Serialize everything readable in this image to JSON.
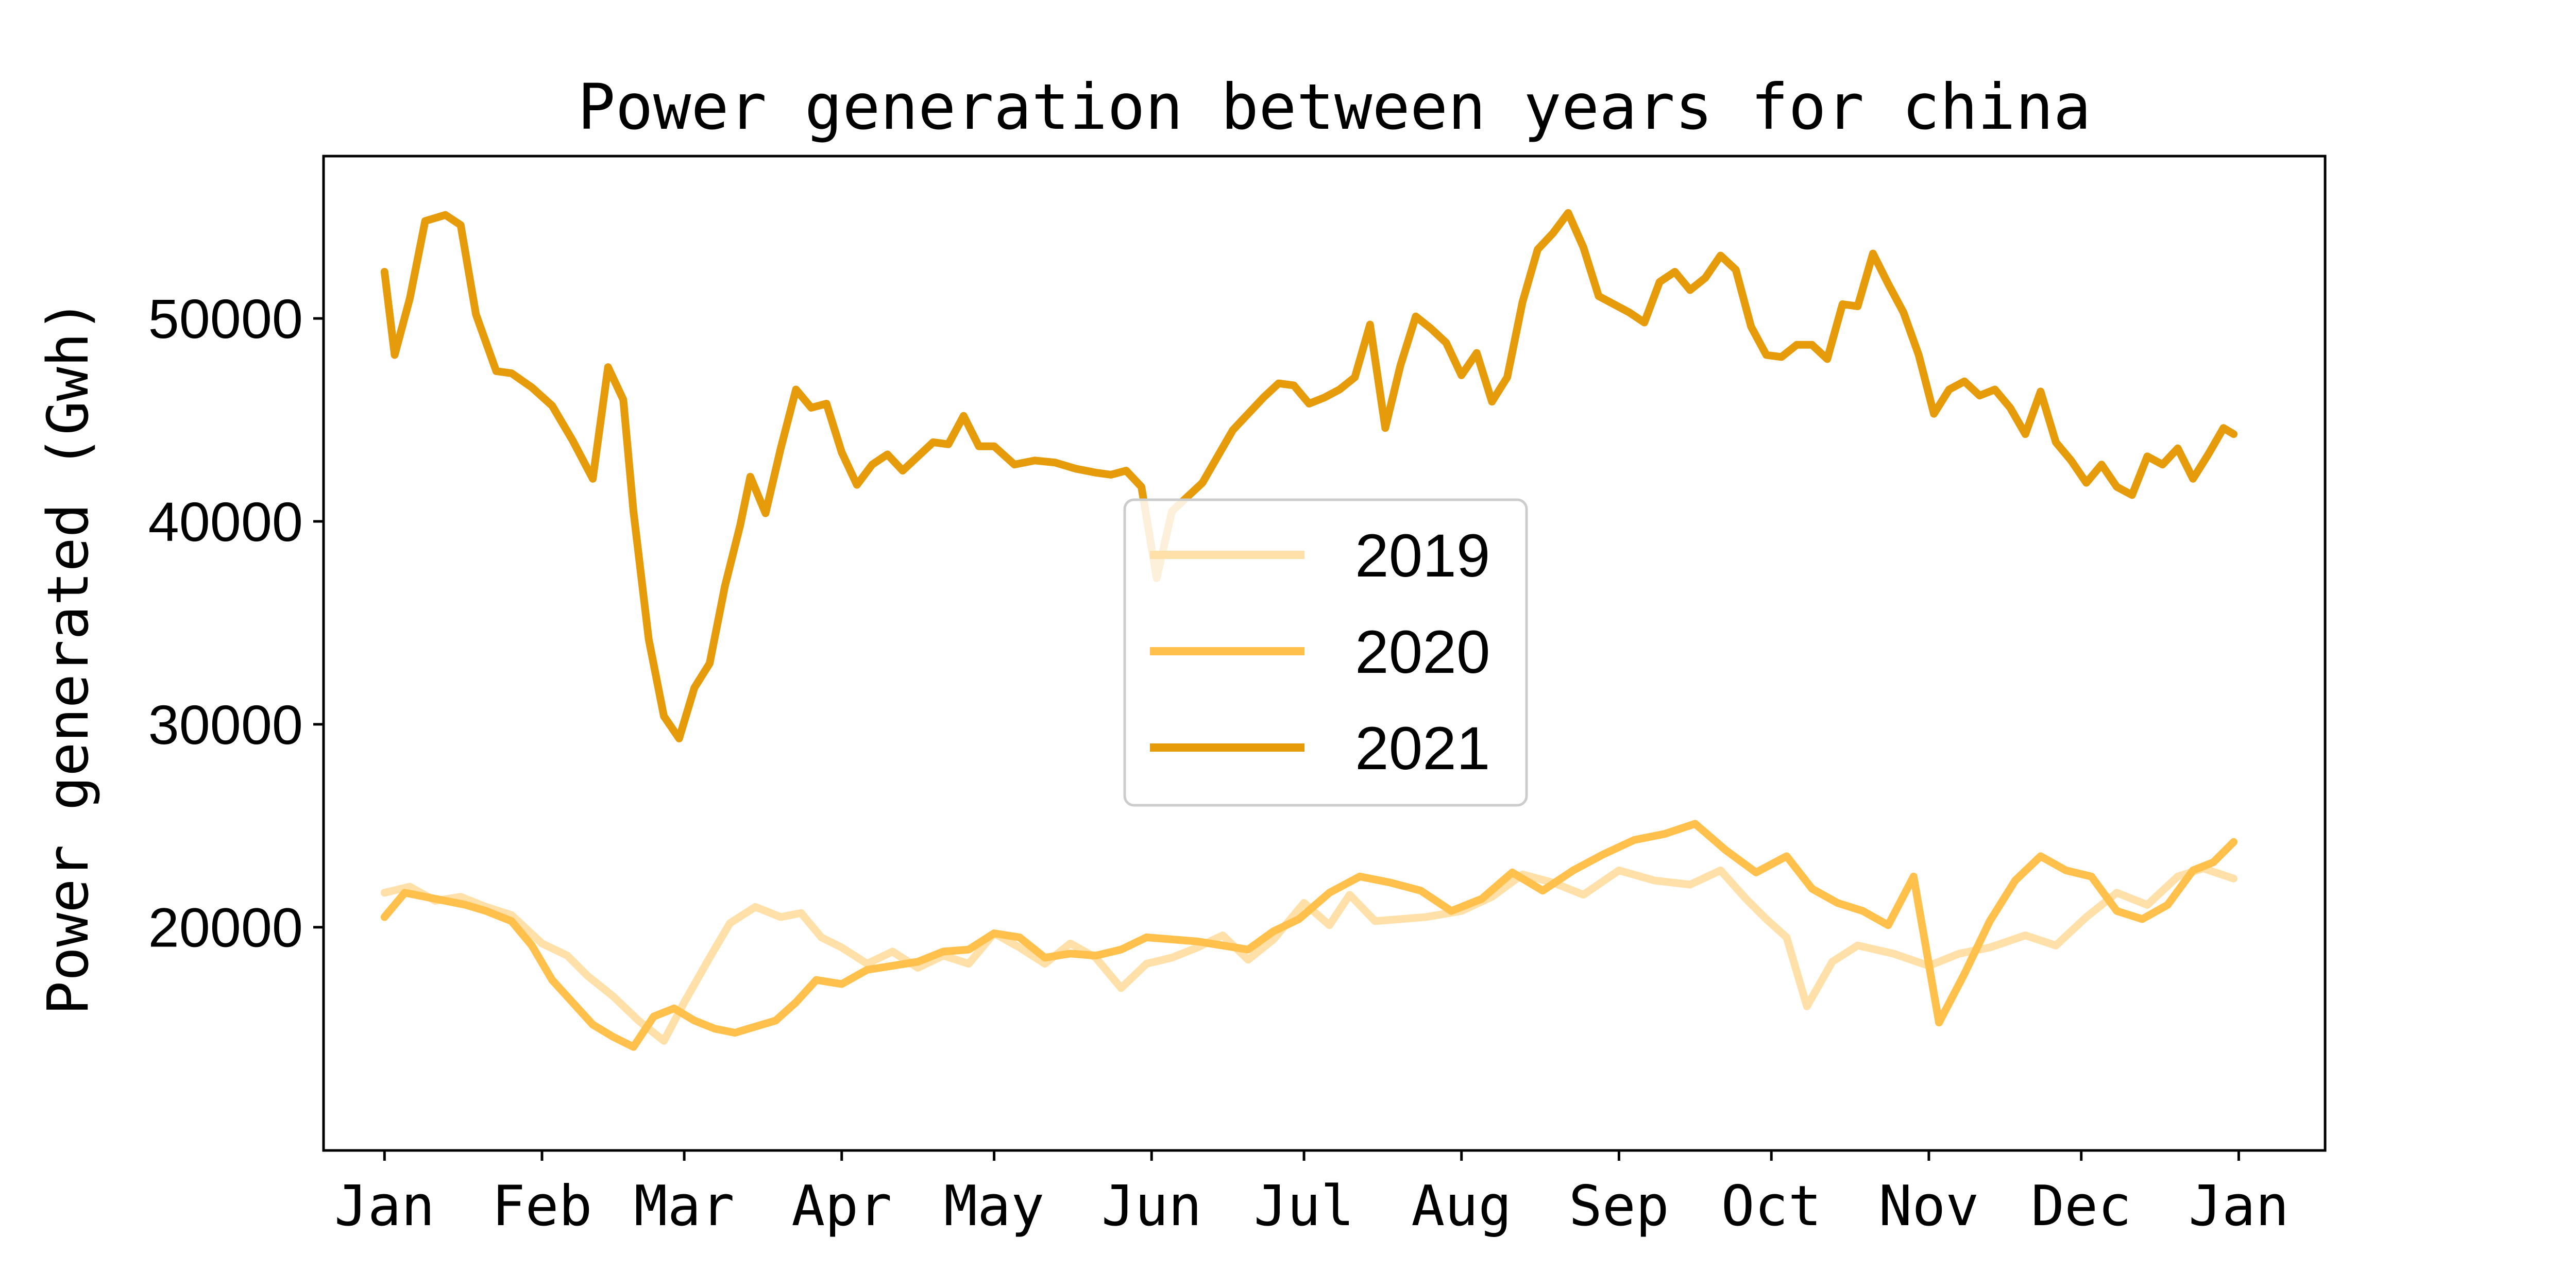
{
  "chart_data": {
    "type": "line",
    "title": "Power generation between years for china",
    "xlabel": "",
    "ylabel": "Power generated (Gwh)",
    "x_ticks": [
      "Jan",
      "Feb",
      "Mar",
      "Apr",
      "May",
      "Jun",
      "Jul",
      "Aug",
      "Sep",
      "Oct",
      "Nov",
      "Dec",
      "Jan"
    ],
    "y_ticks": [
      20000,
      30000,
      40000,
      50000
    ],
    "ylim": [
      9000,
      58000
    ],
    "xlim_days": [
      -12,
      382
    ],
    "grid": false,
    "legend_position": "center",
    "series": [
      {
        "name": "2019",
        "color": "#ffe0a8",
        "x_day": [
          0,
          5,
          10,
          15,
          20,
          25,
          31,
          36,
          40,
          45,
          50,
          55,
          59,
          64,
          68,
          73,
          78,
          82,
          86,
          90,
          95,
          100,
          105,
          110,
          115,
          120,
          125,
          130,
          135,
          140,
          145,
          150,
          155,
          160,
          165,
          170,
          175,
          181,
          186,
          190,
          195,
          200,
          205,
          212,
          218,
          224,
          230,
          236,
          243,
          250,
          257,
          263,
          268,
          272,
          276,
          280,
          285,
          290,
          297,
          304,
          310,
          316,
          323,
          329,
          335,
          341,
          347,
          353,
          358,
          364
        ],
        "values": [
          21700,
          22000,
          21300,
          21500,
          21000,
          20600,
          19200,
          18600,
          17600,
          16600,
          15400,
          14400,
          16300,
          18500,
          20200,
          21000,
          20500,
          20700,
          19500,
          19000,
          18200,
          18800,
          18000,
          18600,
          18200,
          19700,
          19000,
          18200,
          19200,
          18500,
          17000,
          18200,
          18500,
          19000,
          19600,
          18400,
          19400,
          21200,
          20100,
          21600,
          20300,
          20400,
          20500,
          20800,
          21500,
          22600,
          22200,
          21600,
          22800,
          22300,
          22100,
          22800,
          21400,
          20400,
          19500,
          16100,
          18300,
          19100,
          18700,
          18100,
          18700,
          19000,
          19600,
          19100,
          20500,
          21700,
          21100,
          22500,
          22900,
          22400
        ]
      },
      {
        "name": "2020",
        "color": "#ffc04c",
        "x_day": [
          0,
          4,
          8,
          12,
          16,
          20,
          25,
          29,
          33,
          37,
          41,
          45,
          49,
          53,
          57,
          61,
          65,
          69,
          73,
          77,
          81,
          85,
          90,
          95,
          100,
          105,
          110,
          115,
          120,
          125,
          130,
          135,
          140,
          145,
          150,
          155,
          160,
          165,
          170,
          175,
          180,
          186,
          192,
          198,
          204,
          210,
          216,
          222,
          228,
          234,
          240,
          246,
          252,
          258,
          264,
          270,
          276,
          281,
          286,
          291,
          296,
          301,
          306,
          311,
          316,
          321,
          326,
          331,
          336,
          341,
          346,
          351,
          356,
          360,
          364
        ],
        "values": [
          20500,
          21700,
          21500,
          21300,
          21100,
          20800,
          20300,
          19100,
          17400,
          16300,
          15200,
          14600,
          14100,
          15600,
          16000,
          15400,
          15000,
          14800,
          15100,
          15400,
          16300,
          17400,
          17200,
          17900,
          18100,
          18300,
          18800,
          18900,
          19700,
          19500,
          18500,
          18700,
          18600,
          18900,
          19500,
          19400,
          19300,
          19100,
          18900,
          19800,
          20400,
          21700,
          22500,
          22200,
          21800,
          20800,
          21400,
          22700,
          21800,
          22800,
          23600,
          24300,
          24600,
          25100,
          23800,
          22700,
          23500,
          21900,
          21200,
          20800,
          20100,
          22500,
          15300,
          17700,
          20300,
          22300,
          23500,
          22800,
          22500,
          20800,
          20400,
          21100,
          22800,
          23200,
          24200
        ]
      },
      {
        "name": "2021",
        "color": "#e69b0a",
        "x_day": [
          0,
          2,
          5,
          8,
          12,
          15,
          18,
          22,
          25,
          29,
          33,
          37,
          41,
          44,
          47,
          49,
          52,
          55,
          58,
          61,
          64,
          67,
          70,
          72,
          75,
          78,
          81,
          84,
          87,
          90,
          93,
          96,
          99,
          102,
          105,
          108,
          111,
          114,
          117,
          120,
          124,
          128,
          132,
          136,
          140,
          143,
          146,
          149,
          152,
          155,
          158,
          161,
          164,
          167,
          170,
          173,
          176,
          179,
          182,
          185,
          188,
          191,
          194,
          197,
          200,
          203,
          206,
          209,
          212,
          215,
          218,
          221,
          224,
          227,
          230,
          233,
          236,
          239,
          242,
          245,
          248,
          251,
          254,
          257,
          260,
          263,
          266,
          269,
          272,
          275,
          278,
          281,
          284,
          287,
          290,
          293,
          296,
          299,
          302,
          305,
          308,
          311,
          314,
          317,
          320,
          323,
          326,
          329,
          332,
          335,
          338,
          341,
          344,
          347,
          350,
          353,
          356,
          359,
          362,
          364
        ],
        "values": [
          52300,
          48200,
          51000,
          54800,
          55100,
          54600,
          50200,
          47400,
          47300,
          46600,
          45700,
          44000,
          42100,
          47600,
          46000,
          40500,
          34200,
          30400,
          29300,
          31800,
          33000,
          36800,
          39800,
          42200,
          40400,
          43600,
          46500,
          45600,
          45800,
          43400,
          41800,
          42800,
          43300,
          42500,
          43200,
          43900,
          43800,
          45200,
          43700,
          43700,
          42800,
          43000,
          42900,
          42600,
          42400,
          42300,
          42500,
          41700,
          37200,
          40500,
          41200,
          41900,
          43200,
          44500,
          45300,
          46100,
          46800,
          46700,
          45800,
          46100,
          46500,
          47100,
          49700,
          44600,
          47700,
          50100,
          49500,
          48800,
          47200,
          48300,
          45900,
          47100,
          50800,
          53400,
          54200,
          55200,
          53500,
          51100,
          50700,
          50300,
          49800,
          51800,
          52300,
          51400,
          52000,
          53100,
          52400,
          49600,
          48200,
          48100,
          48700,
          48700,
          48000,
          50700,
          50600,
          53200,
          51700,
          50300,
          48200,
          45300,
          46500,
          46900,
          46200,
          46500,
          45600,
          44300,
          46400,
          43900,
          43000,
          41900,
          42800,
          41700,
          41300,
          43200,
          42800,
          43600,
          42100,
          43300,
          44600,
          44300
        ]
      }
    ]
  }
}
